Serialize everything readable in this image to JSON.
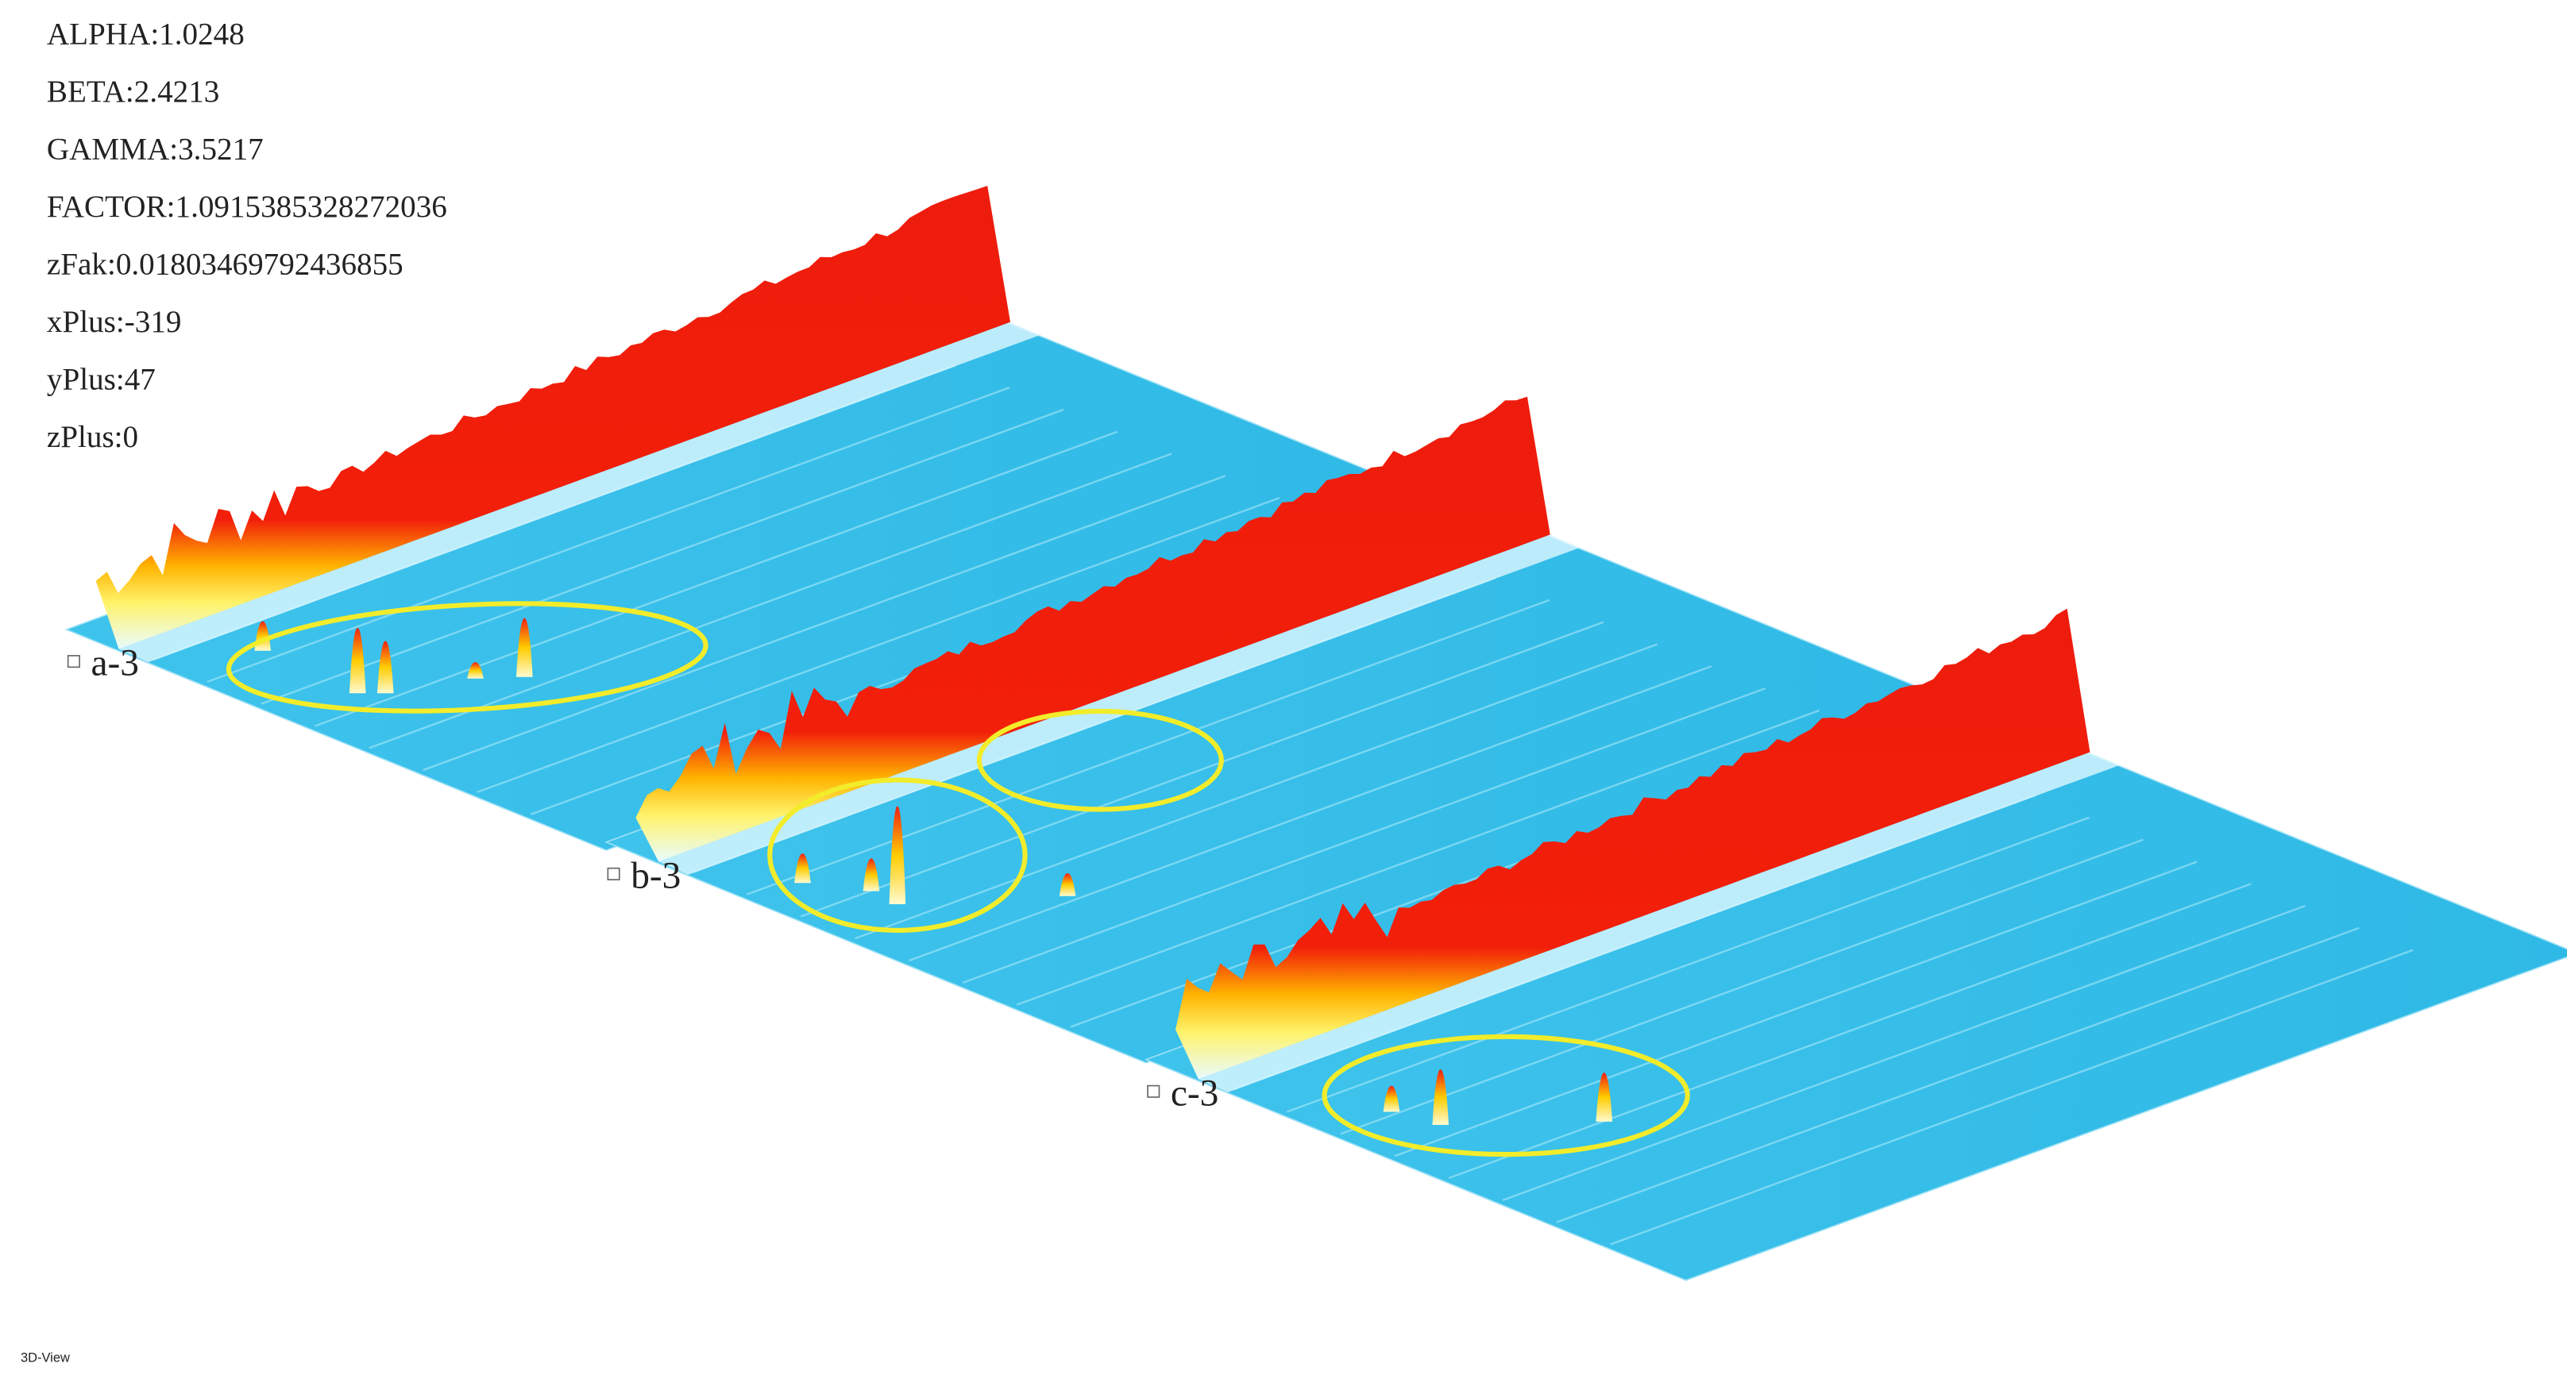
{
  "parameters": [
    "ALPHA:1.0248",
    "BETA:2.4213",
    "GAMMA:3.5217",
    "FACTOR:1.0915385328272036",
    "zFak:0.01803469792436855",
    "xPlus:-319",
    "yPlus:47",
    "zPlus:0"
  ],
  "plates": [
    {
      "label": "a-3"
    },
    {
      "label": "b-3"
    },
    {
      "label": "c-3"
    }
  ],
  "footer": "3D-View"
}
